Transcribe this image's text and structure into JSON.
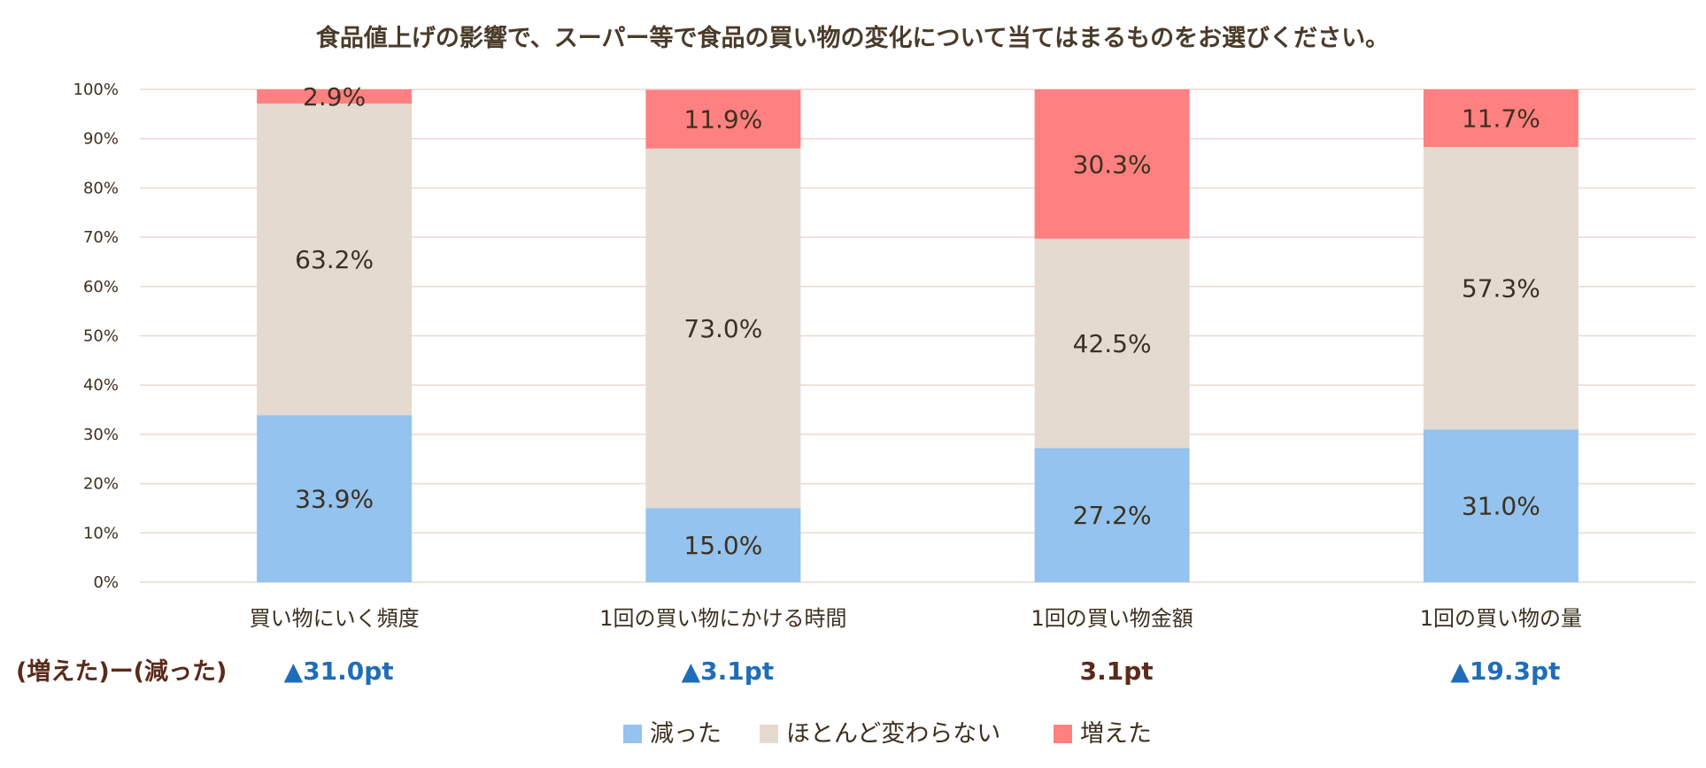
{
  "chart_data": {
    "type": "bar",
    "stacked": true,
    "title": "食品値上げの影響で、スーパー等で食品の買い物の変化について当てはまるものをお選びください。",
    "categories": [
      "買い物にいく頻度",
      "1回の買い物にかける時間",
      "1回の買い物金額",
      "1回の買い物の量"
    ],
    "series": [
      {
        "name": "減った",
        "color": "#93c3ee",
        "values": [
          33.9,
          15.0,
          27.2,
          31.0
        ],
        "labels": [
          "33.9%",
          "15.0%",
          "27.2%",
          "31.0%"
        ]
      },
      {
        "name": "ほとんど変わらない",
        "color": "#e4dad0",
        "values": [
          63.2,
          73.0,
          42.5,
          57.3
        ],
        "labels": [
          "63.2%",
          "73.0%",
          "42.5%",
          "57.3%"
        ]
      },
      {
        "name": "増えた",
        "color": "#ff8080",
        "values": [
          2.9,
          11.9,
          30.3,
          11.7
        ],
        "labels": [
          "2.9%",
          "11.9%",
          "30.3%",
          "11.7%"
        ]
      }
    ],
    "ylim": [
      0,
      100
    ],
    "yticks": [
      0,
      10,
      20,
      30,
      40,
      50,
      60,
      70,
      80,
      90,
      100
    ],
    "ytick_labels": [
      "0%",
      "10%",
      "20%",
      "30%",
      "40%",
      "50%",
      "60%",
      "70%",
      "80%",
      "90%",
      "100%"
    ],
    "grid": true,
    "legend": "bottom-center",
    "difference_row": {
      "label": "(増えた)ー(減った)",
      "values": [
        "▲31.0pt",
        "▲3.1pt",
        "3.1pt",
        "▲19.3pt"
      ],
      "colors": [
        "#1f6db8",
        "#1f6db8",
        "#5a2a1a",
        "#1f6db8"
      ]
    }
  }
}
